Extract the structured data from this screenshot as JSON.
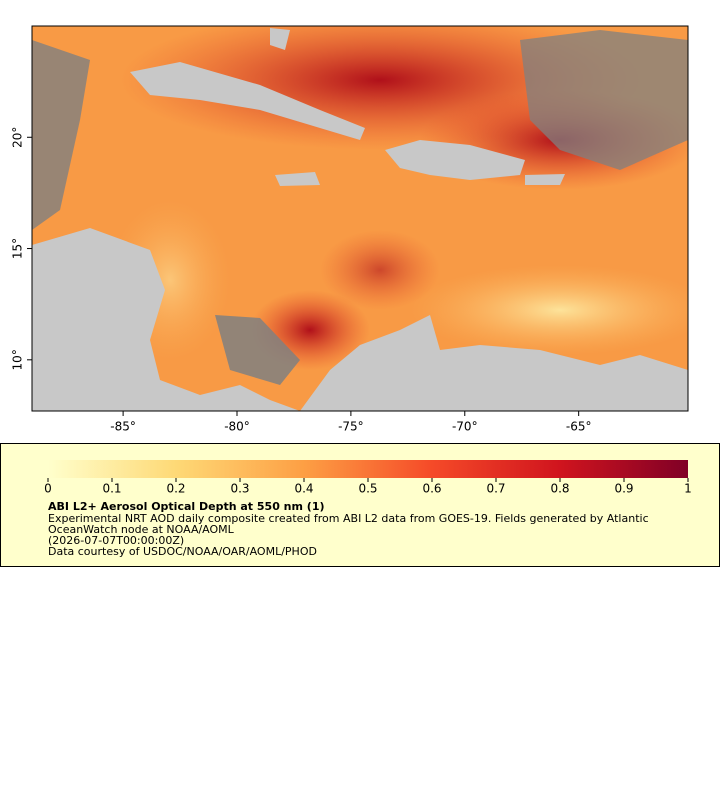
{
  "map": {
    "xlim": [
      -89,
      -60.2
    ],
    "ylim": [
      7.7,
      25
    ],
    "xticks": [
      {
        "value": -85,
        "label": "-85°"
      },
      {
        "value": -80,
        "label": "-80°"
      },
      {
        "value": -75,
        "label": "-75°"
      },
      {
        "value": -70,
        "label": "-70°"
      },
      {
        "value": -65,
        "label": "-65°"
      }
    ],
    "yticks": [
      {
        "value": 10,
        "label": "10°"
      },
      {
        "value": 15,
        "label": "15°"
      },
      {
        "value": 20,
        "label": "20°"
      }
    ]
  },
  "colorbar": {
    "range": [
      0,
      1
    ],
    "ticks": [
      0,
      0.1,
      0.2,
      0.3,
      0.4,
      0.5,
      0.6,
      0.7,
      0.8,
      0.9,
      1
    ]
  },
  "caption": {
    "title": "ABI L2+ Aerosol Optical Depth at 550 nm (1)",
    "lines": [
      "Experimental NRT AOD daily composite created from ABI L2 data from GOES-19. Fields generated by Atlantic",
      "OceanWatch node at NOAA/AOML",
      "(2026-07-07T00:00:00Z)",
      "Data courtesy of USDOC/NOAA/OAR/AOML/PHOD"
    ]
  }
}
